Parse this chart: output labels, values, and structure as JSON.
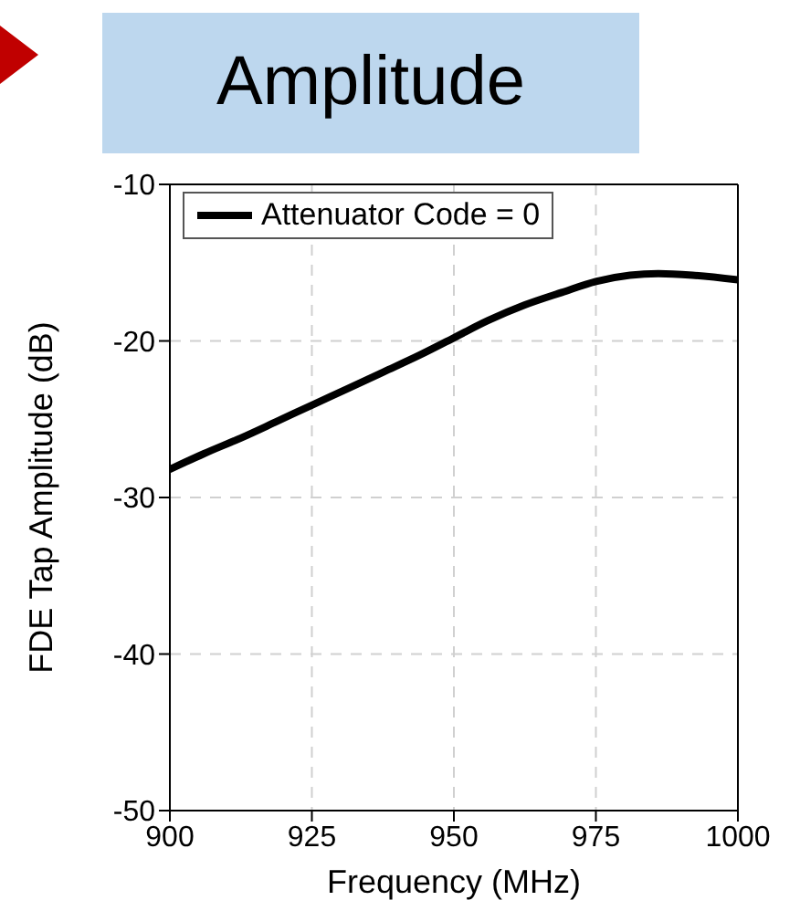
{
  "chart_data": {
    "type": "line",
    "title": "Amplitude",
    "xlabel": "Frequency (MHz)",
    "ylabel": "FDE Tap Amplitude (dB)",
    "x": [
      900,
      906,
      912.5,
      918.5,
      925,
      931,
      937.5,
      944,
      950,
      956,
      962.5,
      969,
      975,
      981,
      986,
      992,
      1000
    ],
    "series": [
      {
        "name": "Attenuator Code = 0",
        "color": "#000000",
        "values": [
          -28.2,
          -27.2,
          -26.2,
          -25.2,
          -24.1,
          -23.1,
          -22.0,
          -20.9,
          -19.8,
          -18.7,
          -17.7,
          -16.9,
          -16.2,
          -15.8,
          -15.7,
          -15.8,
          -16.1
        ]
      }
    ],
    "xlim": [
      900,
      1000
    ],
    "xticks": [
      900,
      925,
      950,
      975,
      1000
    ],
    "ylim": [
      -50,
      -10
    ],
    "yticks": [
      -50,
      -40,
      -30,
      -20,
      -10
    ],
    "grid": true,
    "legend": "top left"
  }
}
